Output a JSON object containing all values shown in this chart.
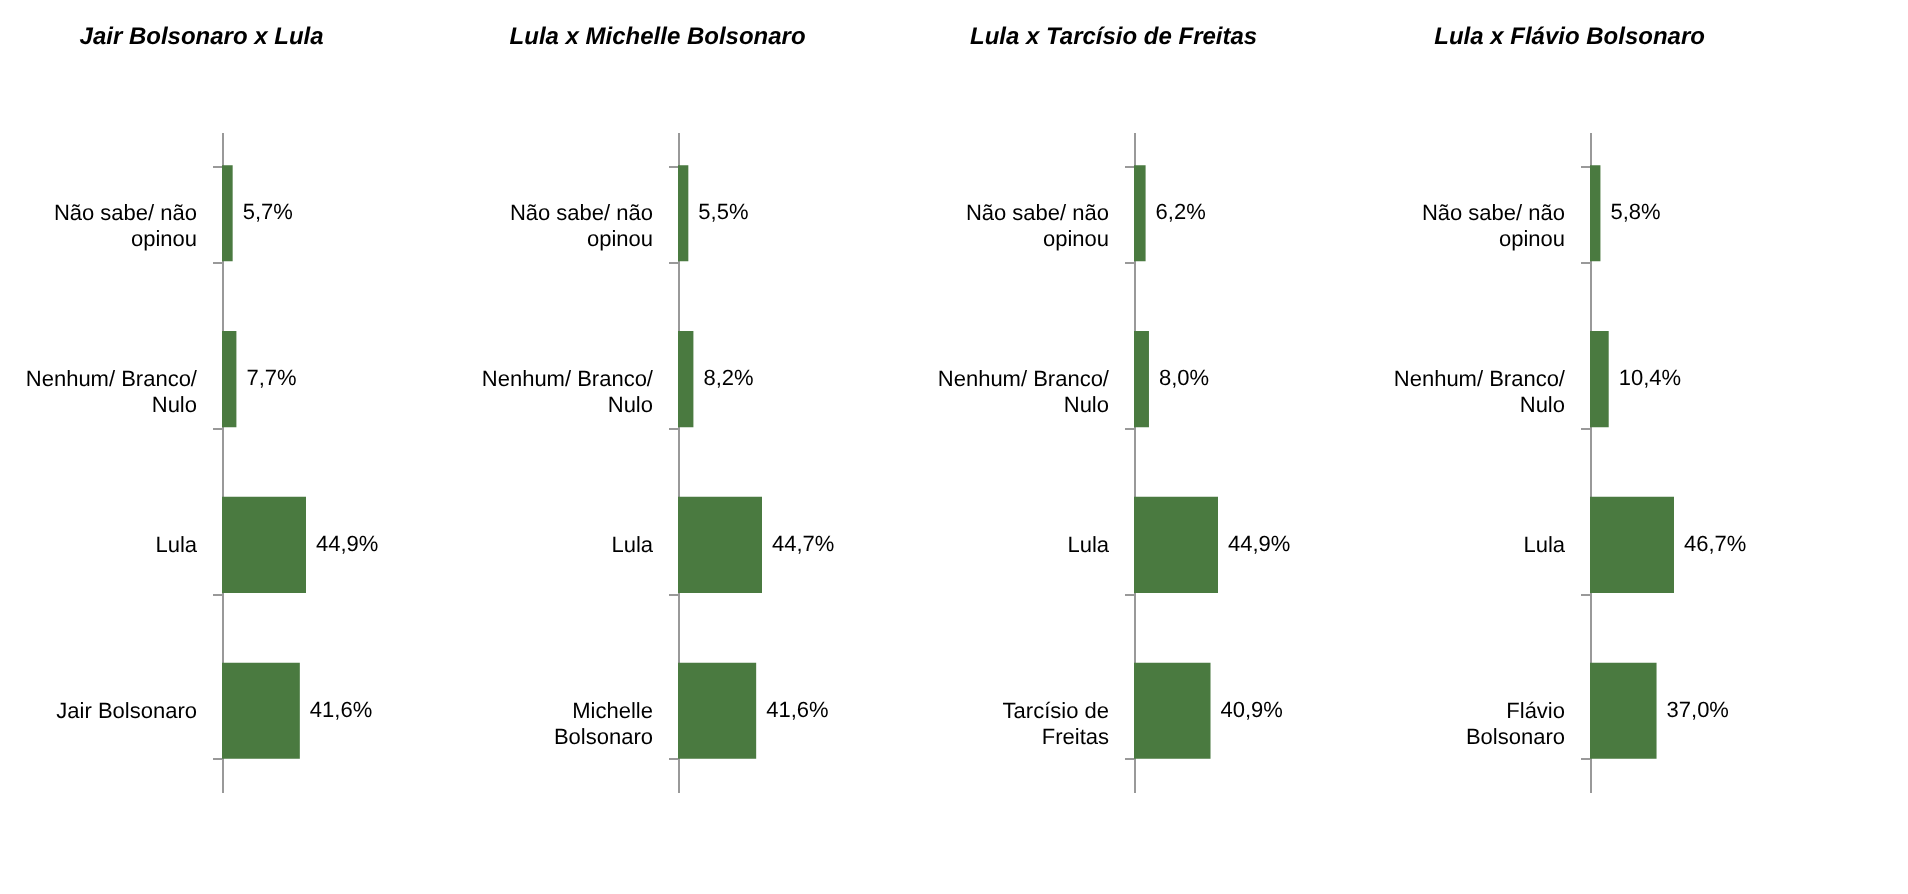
{
  "chart_data": [
    {
      "type": "bar",
      "orientation": "horizontal",
      "title": "Jair Bolsonaro x Lula",
      "categories": [
        "Não sabe/ não opinou",
        "Nenhum/ Branco/ Nulo",
        "Lula",
        "Jair Bolsonaro"
      ],
      "values": [
        5.7,
        7.7,
        44.9,
        41.6
      ],
      "value_labels": [
        "5,7%",
        "7,7%",
        "44,9%",
        "41,6%"
      ],
      "color": "#4a7a40",
      "tick_labels": "y"
    },
    {
      "type": "bar",
      "orientation": "horizontal",
      "title": "Lula x Michelle Bolsonaro",
      "categories": [
        "Não sabe/ não opinou",
        "Nenhum/ Branco/ Nulo",
        "Lula",
        "Michelle Bolsonaro"
      ],
      "values": [
        5.5,
        8.2,
        44.7,
        41.6
      ],
      "value_labels": [
        "5,5%",
        "8,2%",
        "44,7%",
        "41,6%"
      ],
      "color": "#4a7a40",
      "tick_labels": "y"
    },
    {
      "type": "bar",
      "orientation": "horizontal",
      "title": "Lula x Tarcísio de Freitas",
      "categories": [
        "Não sabe/ não opinou",
        "Nenhum/ Branco/ Nulo",
        "Lula",
        "Tarcísio de Freitas"
      ],
      "values": [
        6.2,
        8.0,
        44.9,
        40.9
      ],
      "value_labels": [
        "6,2%",
        "8,0%",
        "44,9%",
        "40,9%"
      ],
      "color": "#4a7a40",
      "tick_labels": "y"
    },
    {
      "type": "bar",
      "orientation": "horizontal",
      "title": "Lula x Flávio Bolsonaro",
      "categories": [
        "Não sabe/ não opinou",
        "Nenhum/ Branco/ Nulo",
        "Lula",
        "Flávio Bolsonaro"
      ],
      "values": [
        5.8,
        10.4,
        46.7,
        37.0
      ],
      "value_labels": [
        "5,8%",
        "10,4%",
        "46,7%",
        "37,0%"
      ],
      "color": "#4a7a40",
      "tick_labels": "y"
    }
  ]
}
